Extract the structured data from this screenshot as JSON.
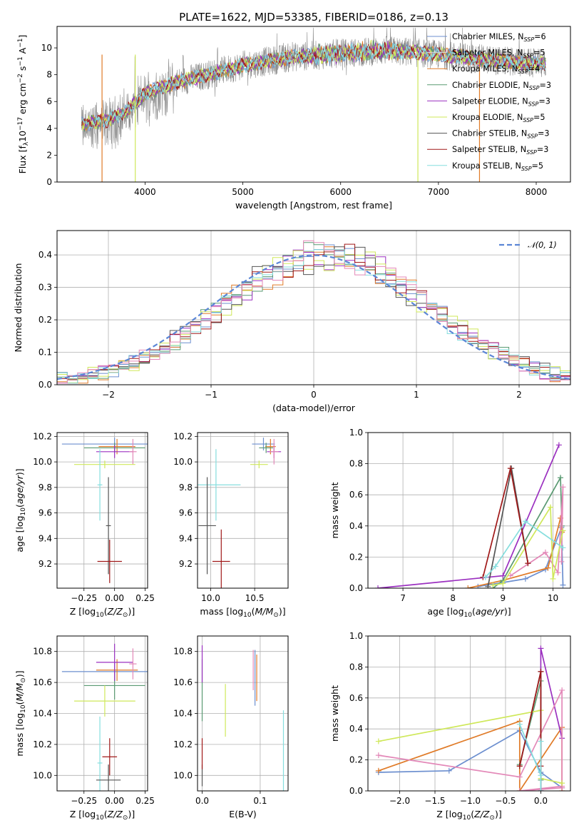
{
  "colors": {
    "Chabrier MILES": "#6c8fcf",
    "Salpeter MILES": "#d8d8d8",
    "Kroupa MILES": "#e07b28",
    "Chabrier ELODIE": "#5a9a72",
    "Salpeter ELODIE": "#9b30c0",
    "Kroupa ELODIE": "#cfe85a",
    "Chabrier STELIB": "#555555",
    "Salpeter STELIB": "#a01818",
    "Kroupa STELIB": "#86dede",
    "pink": "#e388b8"
  },
  "chart_data": [
    {
      "id": "spectrum",
      "type": "line",
      "title": "PLATE=1622, MJD=53385, FIBERID=0186, z=0.13",
      "xlabel": "wavelength [Angstrom, rest frame]",
      "ylabel": "Flux [fλ10⁻¹⁷ erg cm⁻² s⁻¹ A⁻¹]",
      "xlim": [
        3100,
        8350
      ],
      "ylim": [
        0,
        11.6
      ],
      "xticks": [
        4000,
        5000,
        6000,
        7000,
        8000
      ],
      "yticks": [
        0,
        2,
        4,
        6,
        8,
        10
      ],
      "legend": [
        {
          "name": "Chabrier MILES, N_SSP=6",
          "label": "Chabrier MILES, N",
          "sub": "SSP",
          "tail": "=6",
          "color": "#6c8fcf"
        },
        {
          "name": "Salpeter MILES, N_SSP=5",
          "label": "Salpeter MILES, N",
          "sub": "SSP",
          "tail": "=5",
          "color": "#d8d8d8"
        },
        {
          "name": "Kroupa MILES, N_SSP=4",
          "label": "Kroupa MILES, N",
          "sub": "SSP",
          "tail": "=4",
          "color": "#e07b28"
        },
        {
          "name": "Chabrier ELODIE, N_SSP=3",
          "label": "Chabrier ELODIE, N",
          "sub": "SSP",
          "tail": "=3",
          "color": "#5a9a72"
        },
        {
          "name": "Salpeter ELODIE, N_SSP=3",
          "label": "Salpeter ELODIE, N",
          "sub": "SSP",
          "tail": "=3",
          "color": "#9b30c0"
        },
        {
          "name": "Kroupa ELODIE, N_SSP=5",
          "label": "Kroupa ELODIE, N",
          "sub": "SSP",
          "tail": "=5",
          "color": "#cfe85a"
        },
        {
          "name": "Chabrier STELIB, N_SSP=3",
          "label": "Chabrier STELIB, N",
          "sub": "SSP",
          "tail": "=3",
          "color": "#555555"
        },
        {
          "name": "Salpeter STELIB, N_SSP=3",
          "label": "Salpeter STELIB, N",
          "sub": "SSP",
          "tail": "=3",
          "color": "#a01818"
        },
        {
          "name": "Kroupa STELIB, N_SSP=5",
          "label": "Kroupa STELIB, N",
          "sub": "SSP",
          "tail": "=5",
          "color": "#86dede"
        }
      ],
      "continuum": [
        [
          3350,
          4.3
        ],
        [
          3600,
          4.6
        ],
        [
          3800,
          5.2
        ],
        [
          4000,
          6.6
        ],
        [
          4300,
          7.4
        ],
        [
          4700,
          8.1
        ],
        [
          5000,
          8.7
        ],
        [
          5500,
          9.3
        ],
        [
          6000,
          9.6
        ],
        [
          6500,
          9.8
        ],
        [
          7000,
          9.5
        ],
        [
          7400,
          9.2
        ],
        [
          7800,
          8.9
        ],
        [
          8100,
          8.8
        ]
      ],
      "vertical_drops": [
        {
          "x": 3560,
          "color": "#e07b28"
        },
        {
          "x": 3900,
          "color": "#cfe85a"
        },
        {
          "x": 6790,
          "color": "#cfe85a"
        },
        {
          "x": 7420,
          "color": "#e07b28"
        }
      ]
    },
    {
      "id": "residual_histogram",
      "type": "step",
      "xlabel": "(data-model)/error",
      "ylabel": "Normed distribution",
      "xlim": [
        -2.5,
        2.5
      ],
      "ylim": [
        0,
        0.475
      ],
      "xticks": [
        -2,
        -1,
        0,
        1,
        2
      ],
      "yticks": [
        0.0,
        0.1,
        0.2,
        0.3,
        0.4
      ],
      "legend": "𝒩(0, 1)",
      "bin_width": 0.1
    },
    {
      "id": "age_vs_Z",
      "type": "errorbar",
      "xlabel": "Z [log₁₀(Z/Z⊙)]",
      "ylabel": "age  [log₁₀(age/yr)]",
      "xlim": [
        -0.47,
        0.27
      ],
      "ylim": [
        9.01,
        10.23
      ],
      "xticks": [
        -0.25,
        0.0,
        0.25
      ],
      "yticks": [
        9.2,
        9.4,
        9.6,
        9.8,
        10.0,
        10.2
      ],
      "points": [
        {
          "x": 0.0,
          "xerr": 0.43,
          "y": 10.14,
          "yerr": 0.05,
          "color": "#6c8fcf"
        },
        {
          "x": 0.02,
          "xerr": 0.15,
          "y": 10.12,
          "yerr": 0.06,
          "color": "#e07b28"
        },
        {
          "x": 0.0,
          "xerr": 0.25,
          "y": 10.11,
          "yerr": 0.04,
          "color": "#5a9a72"
        },
        {
          "x": 0.0,
          "xerr": 0.15,
          "y": 10.08,
          "yerr": 0.05,
          "color": "#9b30c0"
        },
        {
          "x": 0.15,
          "xerr": 0.03,
          "y": 10.08,
          "yerr": 0.1,
          "color": "#e388b8"
        },
        {
          "x": -0.08,
          "xerr": 0.25,
          "y": 9.98,
          "yerr": 0.03,
          "color": "#cfe85a"
        },
        {
          "x": -0.12,
          "xerr": 0.02,
          "y": 9.82,
          "yerr": 0.28,
          "color": "#86dede"
        },
        {
          "x": -0.05,
          "xerr": 0.02,
          "y": 9.5,
          "yerr": 0.38,
          "color": "#555555"
        },
        {
          "x": -0.04,
          "xerr": 0.1,
          "y": 9.22,
          "yerr": 0.17,
          "color": "#a01818"
        }
      ]
    },
    {
      "id": "age_vs_mass",
      "type": "errorbar",
      "xlabel": "mass [log₁₀(M/M⊙)]",
      "ylabel": "",
      "xlim": [
        9.85,
        10.88
      ],
      "ylim": [
        9.01,
        10.23
      ],
      "xticks": [
        10.0,
        10.5
      ],
      "yticks": [
        9.2,
        9.4,
        9.6,
        9.8,
        10.0,
        10.2
      ],
      "points": [
        {
          "x": 10.6,
          "xerr": 0.13,
          "y": 10.14,
          "yerr": 0.05,
          "color": "#6c8fcf"
        },
        {
          "x": 10.68,
          "xerr": 0.06,
          "y": 10.12,
          "yerr": 0.06,
          "color": "#e07b28"
        },
        {
          "x": 10.63,
          "xerr": 0.08,
          "y": 10.11,
          "yerr": 0.04,
          "color": "#5a9a72"
        },
        {
          "x": 10.72,
          "xerr": 0.08,
          "y": 10.08,
          "yerr": 0.05,
          "color": "#9b30c0"
        },
        {
          "x": 10.72,
          "xerr": 0.05,
          "y": 10.08,
          "yerr": 0.1,
          "color": "#e388b8"
        },
        {
          "x": 10.55,
          "xerr": 0.1,
          "y": 9.98,
          "yerr": 0.03,
          "color": "#cfe85a"
        },
        {
          "x": 10.06,
          "xerr": 0.28,
          "y": 9.82,
          "yerr": 0.28,
          "color": "#86dede"
        },
        {
          "x": 9.96,
          "xerr": 0.1,
          "y": 9.5,
          "yerr": 0.38,
          "color": "#555555"
        },
        {
          "x": 10.12,
          "xerr": 0.1,
          "y": 9.22,
          "yerr": 0.25,
          "color": "#a01818"
        }
      ]
    },
    {
      "id": "weight_vs_age",
      "type": "line",
      "xlabel": "age  [log₁₀(age/yr)]",
      "ylabel": "mass weight",
      "xlim": [
        6.3,
        10.35
      ],
      "ylim": [
        0,
        1.0
      ],
      "xticks": [
        7,
        8,
        9,
        10
      ],
      "yticks": [
        0.0,
        0.2,
        0.4,
        0.6,
        0.8,
        1.0
      ],
      "series": [
        {
          "color": "#6c8fcf",
          "x": [
            8.5,
            9.45,
            9.85,
            10.17,
            10.2
          ],
          "y": [
            0.01,
            0.06,
            0.12,
            0.39,
            0.02
          ]
        },
        {
          "color": "#e07b28",
          "x": [
            8.3,
            9.0,
            9.9,
            10.15,
            10.18
          ],
          "y": [
            0.0,
            0.05,
            0.13,
            0.45,
            0.36
          ]
        },
        {
          "color": "#5a9a72",
          "x": [
            8.8,
            9.0,
            10.15,
            10.18
          ],
          "y": [
            0.0,
            0.05,
            0.71,
            0.4
          ]
        },
        {
          "color": "#9b30c0",
          "x": [
            6.5,
            9.0,
            10.12
          ],
          "y": [
            0.0,
            0.08,
            0.92
          ]
        },
        {
          "color": "#e388b8",
          "x": [
            9.15,
            9.85,
            10.1,
            10.2,
            10.17
          ],
          "y": [
            0.08,
            0.23,
            0.1,
            0.65,
            0.17
          ]
        },
        {
          "color": "#cfe85a",
          "x": [
            8.8,
            9.0,
            9.95,
            10.0,
            10.2
          ],
          "y": [
            0.02,
            0.03,
            0.52,
            0.06,
            0.37
          ]
        },
        {
          "color": "#555555",
          "x": [
            8.7,
            9.17,
            9.5
          ],
          "y": [
            0.01,
            0.77,
            0.16
          ]
        },
        {
          "color": "#a01818",
          "x": [
            8.6,
            9.15,
            9.5
          ],
          "y": [
            0.07,
            0.77,
            0.16
          ]
        },
        {
          "color": "#86dede",
          "x": [
            8.65,
            8.85,
            9.45,
            10.2
          ],
          "y": [
            0.07,
            0.14,
            0.43,
            0.26
          ]
        }
      ]
    },
    {
      "id": "mass_vs_Z",
      "type": "errorbar",
      "xlabel": "Z [log₁₀(Z/Z⊙)]",
      "ylabel": "mass [log₁₀(M/M⊙)]",
      "xlim": [
        -0.47,
        0.27
      ],
      "ylim": [
        9.9,
        10.9
      ],
      "xticks": [
        -0.25,
        0.0,
        0.25
      ],
      "yticks": [
        10.0,
        10.2,
        10.4,
        10.6,
        10.8
      ],
      "points": [
        {
          "x": 0.0,
          "xerr": 0.43,
          "y": 10.67,
          "yerr": 0.06,
          "color": "#6c8fcf"
        },
        {
          "x": 0.02,
          "xerr": 0.17,
          "y": 10.68,
          "yerr": 0.07,
          "color": "#e07b28"
        },
        {
          "x": 0.0,
          "xerr": 0.25,
          "y": 10.58,
          "yerr": 0.09,
          "color": "#5a9a72"
        },
        {
          "x": 0.0,
          "xerr": 0.15,
          "y": 10.73,
          "yerr": 0.12,
          "color": "#9b30c0"
        },
        {
          "x": 0.15,
          "xerr": 0.03,
          "y": 10.72,
          "yerr": 0.1,
          "color": "#e388b8"
        },
        {
          "x": -0.08,
          "xerr": 0.25,
          "y": 10.48,
          "yerr": 0.1,
          "color": "#cfe85a"
        },
        {
          "x": -0.12,
          "xerr": 0.02,
          "y": 10.08,
          "yerr": 0.3,
          "color": "#86dede"
        },
        {
          "x": -0.05,
          "xerr": 0.1,
          "y": 9.97,
          "yerr": 0.1,
          "color": "#555555"
        },
        {
          "x": -0.04,
          "xerr": 0.06,
          "y": 10.12,
          "yerr": 0.12,
          "color": "#a01818"
        }
      ]
    },
    {
      "id": "mass_vs_ebv",
      "type": "errorbar",
      "xlabel": "E(B-V)",
      "ylabel": "",
      "xlim": [
        -0.008,
        0.148
      ],
      "ylim": [
        9.9,
        10.9
      ],
      "xticks": [
        0.0,
        0.1
      ],
      "yticks": [
        10.0,
        10.2,
        10.4,
        10.6,
        10.8
      ],
      "points": [
        {
          "x": 0.0,
          "xerr": 0,
          "y": 10.0,
          "yerr": 0.07,
          "color": "#555555"
        },
        {
          "x": 0.0,
          "xerr": 0,
          "y": 10.14,
          "yerr": 0.1,
          "color": "#a01818"
        },
        {
          "x": 0.0,
          "xerr": 0,
          "y": 10.55,
          "yerr": 0.2,
          "color": "#5a9a72"
        },
        {
          "x": 0.0,
          "xerr": 0,
          "y": 10.72,
          "yerr": 0.12,
          "color": "#9b30c0"
        },
        {
          "x": 0.04,
          "xerr": 0,
          "y": 10.42,
          "yerr": 0.17,
          "color": "#cfe85a"
        },
        {
          "x": 0.088,
          "xerr": 0,
          "y": 10.68,
          "yerr": 0.13,
          "color": "#e388b8"
        },
        {
          "x": 0.091,
          "xerr": 0,
          "y": 10.63,
          "yerr": 0.18,
          "color": "#6c8fcf"
        },
        {
          "x": 0.094,
          "xerr": 0,
          "y": 10.63,
          "yerr": 0.15,
          "color": "#e07b28"
        },
        {
          "x": 0.14,
          "xerr": 0,
          "y": 10.12,
          "yerr": 0.3,
          "color": "#86dede"
        }
      ]
    },
    {
      "id": "weight_vs_Z",
      "type": "line",
      "xlabel": "Z [log₁₀(Z/Z⊙)]",
      "ylabel": "mass weight",
      "xlim": [
        -2.45,
        0.42
      ],
      "ylim": [
        0,
        1.0
      ],
      "xticks": [
        -2.0,
        -1.5,
        -1.0,
        -0.5,
        0.0
      ],
      "yticks": [
        0.0,
        0.2,
        0.4,
        0.6,
        0.8,
        1.0
      ],
      "series": [
        {
          "color": "#6c8fcf",
          "x": [
            -2.3,
            -1.3,
            -0.3,
            0.0,
            0.3
          ],
          "y": [
            0.12,
            0.13,
            0.39,
            0.12,
            0.02
          ]
        },
        {
          "color": "#e07b28",
          "x": [
            -2.3,
            -0.3,
            -0.3,
            0.3,
            0.3
          ],
          "y": [
            0.13,
            0.45,
            0.0,
            0.41,
            0.0
          ]
        },
        {
          "color": "#5a9a72",
          "x": [
            -0.3,
            0.0,
            0.0
          ],
          "y": [
            0.17,
            0.71,
            0.07
          ]
        },
        {
          "color": "#9b30c0",
          "x": [
            0.0,
            0.0,
            0.3
          ],
          "y": [
            0.0,
            0.92,
            0.34
          ]
        },
        {
          "color": "#e388b8",
          "x": [
            -2.3,
            -0.3,
            0.3,
            0.3,
            -0.3,
            0.3
          ],
          "y": [
            0.23,
            0.09,
            0.65,
            0.03,
            0.0,
            0.02
          ]
        },
        {
          "color": "#cfe85a",
          "x": [
            -2.3,
            0.0,
            0.0,
            0.3
          ],
          "y": [
            0.32,
            0.52,
            0.08,
            0.05
          ]
        },
        {
          "color": "#555555",
          "x": [
            -0.3,
            0.0,
            0.0
          ],
          "y": [
            0.16,
            0.77,
            0.0
          ]
        },
        {
          "color": "#a01818",
          "x": [
            -0.3,
            0.0,
            0.0
          ],
          "y": [
            0.16,
            0.77,
            0.16
          ]
        },
        {
          "color": "#86dede",
          "x": [
            -0.3,
            0.0,
            0.0,
            0.0
          ],
          "y": [
            0.43,
            0.1,
            0.32,
            0.0
          ]
        }
      ]
    }
  ]
}
